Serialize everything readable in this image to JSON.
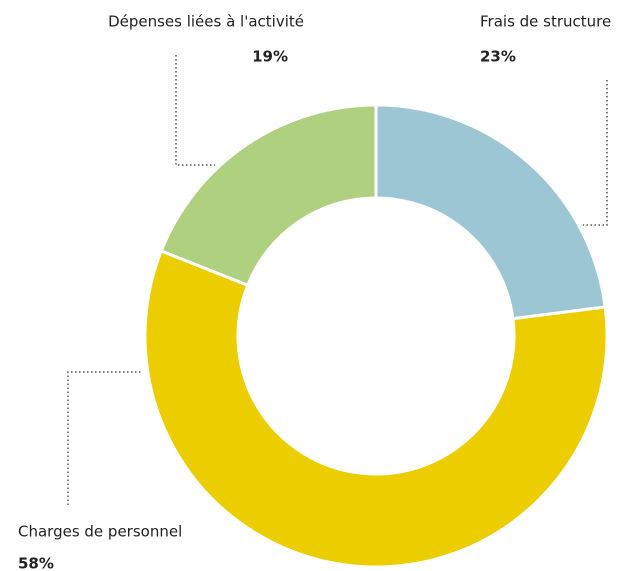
{
  "chart_data": {
    "type": "pie",
    "categories": [
      "Frais de structure",
      "Charges de personnel",
      "Dépenses liées à l'activité"
    ],
    "values": [
      23,
      58,
      19
    ],
    "value_labels": [
      "23%",
      "58%",
      "19%"
    ],
    "colors": [
      "#9dc6d4",
      "#eccd00",
      "#aed07f"
    ],
    "donut": true
  }
}
